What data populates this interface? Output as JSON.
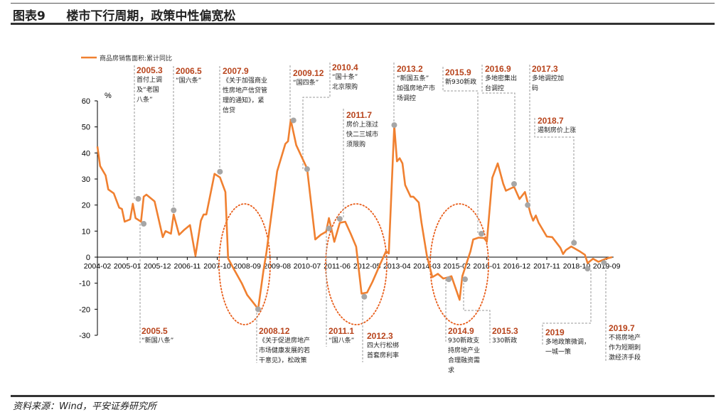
{
  "header": {
    "title": "图表9     楼市下行周期，政策中性偏宽松"
  },
  "footer": {
    "source": "资料来源：Wind，平安证券研究所"
  },
  "colors": {
    "line": "#f08030",
    "marker": "#a6a6a6",
    "annotation_date": "#b8441c",
    "leader": "#999999"
  },
  "chart_data": {
    "type": "line",
    "title": "",
    "ylabel": "%",
    "ylim": [
      -30,
      60
    ],
    "yticks": [
      60,
      50,
      40,
      30,
      20,
      10,
      0,
      -10,
      -20,
      -30
    ],
    "xticks": [
      "2004-02",
      "2005-01",
      "2005-12",
      "2006-11",
      "2007-10",
      "2008-09",
      "2009-08",
      "2010-07",
      "2011-06",
      "2012-05",
      "2013-04",
      "2014-03",
      "2015-02",
      "2016-01",
      "2016-12",
      "2017-11",
      "2018-10",
      "2019-09"
    ],
    "xrange": [
      "2004-02",
      "2019-11"
    ],
    "grid": false,
    "legend": "top-left",
    "series": [
      {
        "name": "商品房销售面积:累计同比",
        "points": [
          [
            "2004-02",
            42.5
          ],
          [
            "2004-03",
            35
          ],
          [
            "2004-05",
            31.4
          ],
          [
            "2004-06",
            26
          ],
          [
            "2004-08",
            24.5
          ],
          [
            "2004-10",
            19
          ],
          [
            "2004-11",
            18.5
          ],
          [
            "2004-12",
            13.6
          ],
          [
            "2005-02",
            14.5
          ],
          [
            "2005-03",
            20.5
          ],
          [
            "2005-04",
            15
          ],
          [
            "2005-06",
            13.6
          ],
          [
            "2005-07",
            23.2
          ],
          [
            "2005-08",
            24
          ],
          [
            "2005-11",
            21.4
          ],
          [
            "2006-02",
            7.7
          ],
          [
            "2006-03",
            10
          ],
          [
            "2006-05",
            9
          ],
          [
            "2006-06",
            16.4
          ],
          [
            "2006-08",
            8.6
          ],
          [
            "2006-10",
            10.6
          ],
          [
            "2006-12",
            12.3
          ],
          [
            "2007-02",
            0.5
          ],
          [
            "2007-04",
            14
          ],
          [
            "2007-05",
            16.4
          ],
          [
            "2007-06",
            16.4
          ],
          [
            "2007-09",
            32
          ],
          [
            "2007-11",
            30.6
          ],
          [
            "2008-01",
            25
          ],
          [
            "2008-02",
            -0.5
          ],
          [
            "2008-04",
            -4.4
          ],
          [
            "2008-07",
            -10
          ],
          [
            "2008-09",
            -14.5
          ],
          [
            "2008-12",
            -18.5
          ],
          [
            "2009-01",
            -20
          ],
          [
            "2009-03",
            -5
          ],
          [
            "2009-04",
            1.4
          ],
          [
            "2009-08",
            33
          ],
          [
            "2009-11",
            43.5
          ],
          [
            "2009-12",
            44.5
          ],
          [
            "2010-01",
            52.7
          ],
          [
            "2010-03",
            43
          ],
          [
            "2010-07",
            34
          ],
          [
            "2010-10",
            6.8
          ],
          [
            "2010-12",
            8.6
          ],
          [
            "2011-02",
            9.8
          ],
          [
            "2011-03",
            15
          ],
          [
            "2011-05",
            5.9
          ],
          [
            "2011-07",
            13.2
          ],
          [
            "2011-09",
            13.6
          ],
          [
            "2011-11",
            9
          ],
          [
            "2012-01",
            4
          ],
          [
            "2012-03",
            -14
          ],
          [
            "2012-05",
            -13.6
          ],
          [
            "2012-07",
            -9.5
          ],
          [
            "2012-10",
            -2.3
          ],
          [
            "2012-12",
            2.3
          ],
          [
            "2013-01",
            1.4
          ],
          [
            "2013-03",
            50.5
          ],
          [
            "2013-04",
            36.8
          ],
          [
            "2013-05",
            38
          ],
          [
            "2013-06",
            36
          ],
          [
            "2013-07",
            27.7
          ],
          [
            "2013-09",
            23.2
          ],
          [
            "2013-10",
            23.2
          ],
          [
            "2013-12",
            21
          ],
          [
            "2014-01",
            13.2
          ],
          [
            "2014-03",
            0.5
          ],
          [
            "2014-05",
            -7.7
          ],
          [
            "2014-07",
            -6.4
          ],
          [
            "2014-09",
            -8.2
          ],
          [
            "2014-11",
            -7.7
          ],
          [
            "2014-12",
            -7.3
          ],
          [
            "2015-03",
            -16.4
          ],
          [
            "2015-04",
            -7.3
          ],
          [
            "2015-07",
            2.3
          ],
          [
            "2015-08",
            6.8
          ],
          [
            "2015-10",
            7.5
          ],
          [
            "2015-12",
            7.3
          ],
          [
            "2016-01",
            5.9
          ],
          [
            "2016-03",
            30.5
          ],
          [
            "2016-05",
            36
          ],
          [
            "2016-07",
            28.2
          ],
          [
            "2016-08",
            25.5
          ],
          [
            "2016-11",
            27
          ],
          [
            "2017-01",
            22.3
          ],
          [
            "2017-03",
            25
          ],
          [
            "2017-05",
            16.8
          ],
          [
            "2017-06",
            14
          ],
          [
            "2017-07",
            16
          ],
          [
            "2017-08",
            13.2
          ],
          [
            "2017-11",
            7.9
          ],
          [
            "2018-01",
            7.7
          ],
          [
            "2018-04",
            3.6
          ],
          [
            "2018-05",
            1.2
          ],
          [
            "2018-06",
            2.7
          ],
          [
            "2018-08",
            4.1
          ],
          [
            "2018-11",
            2.3
          ],
          [
            "2019-01",
            0.9
          ],
          [
            "2019-02",
            -2.3
          ],
          [
            "2019-04",
            -0.6
          ],
          [
            "2019-06",
            -1.8
          ],
          [
            "2019-09",
            -0.5
          ],
          [
            "2019-11",
            0
          ]
        ]
      }
    ],
    "annotations": [
      {
        "date": "2005.3",
        "text": "首付上调\n及“老国\n八条”",
        "marker": [
          "2005-05",
          22.4
        ]
      },
      {
        "date": "2006.5",
        "text": "“国六条”",
        "marker": [
          "2006-06",
          18
        ]
      },
      {
        "date": "2007.9",
        "text": "《关于加强商业\n性房地产信贷管\n理的通知》，紧\n信贷",
        "marker": [
          "2007-11",
          32.8
        ]
      },
      {
        "date": "2009.12",
        "text": "“国四条”",
        "marker": [
          "2010-02",
          52.5
        ]
      },
      {
        "date": "2010.4",
        "text": "“国十条”\n北京限购",
        "marker": [
          "2010-07",
          33.8
        ]
      },
      {
        "date": "2011.7",
        "text": "房价上涨过\n快二三城市\n须限购",
        "marker": [
          "2011-07",
          14.7
        ]
      },
      {
        "date": "2013.2",
        "text": "“新国五条”\n加强房地产市\n场调控",
        "marker": [
          "2013-03",
          50.7
        ]
      },
      {
        "date": "2015.9",
        "text": "新930新政",
        "marker": [
          "2015-11",
          9
        ]
      },
      {
        "date": "2016.9",
        "text": "多地密集出\n台调控",
        "marker": [
          "2016-11",
          28.1
        ]
      },
      {
        "date": "2017.3",
        "text": "多地调控加\n码",
        "marker": [
          "2017-04",
          20
        ]
      },
      {
        "date": "2018.7",
        "text": "遏制房价上涨",
        "marker": [
          "2018-09",
          5.5
        ]
      },
      {
        "date": "2005.5",
        "text": "“新国八条”",
        "marker": [
          "2005-07",
          12.8
        ]
      },
      {
        "date": "2008.12",
        "text": "《关于促进房地产\n市场健康发展的若\n干意见》，松政策",
        "marker": [
          "2009-01",
          -20
        ]
      },
      {
        "date": "2011.1",
        "text": "“国八条”",
        "marker": [
          "2011-03",
          11
        ]
      },
      {
        "date": "2012.3",
        "text": "四大行松绑\n首套房利率",
        "marker": [
          "2012-04",
          -15.2
        ]
      },
      {
        "date": "2014.9",
        "text": "930新政支\n持房地产业\n合理融资需\n求",
        "marker": [
          "2014-11",
          -8.5
        ]
      },
      {
        "date": "2015.3",
        "text": "330新政",
        "marker": [
          "2015-05",
          -8.5
        ]
      },
      {
        "date": "2019",
        "text": "多地政策微调，\n一城一策",
        "marker": [
          "2019-02",
          -4.4
        ]
      },
      {
        "date": "2019.7",
        "text": "不将房地产\n作为短期刺\n激经济手段",
        "marker": [
          "2019-08",
          -2.2
        ]
      }
    ]
  }
}
